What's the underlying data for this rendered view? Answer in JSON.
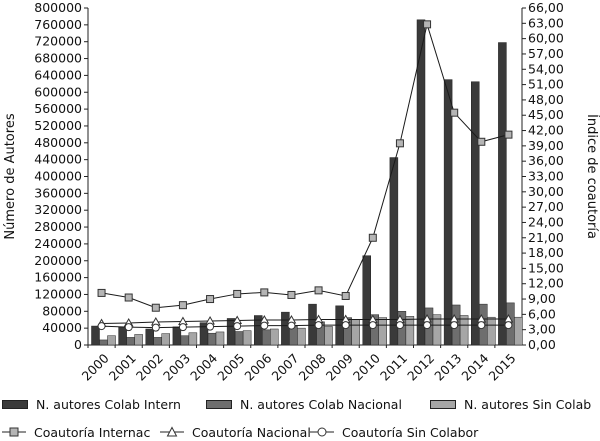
{
  "chart_data": {
    "type": "bar",
    "title": "",
    "xlabel": "",
    "ylabel": "Número de Autores",
    "y2label": "Índice de coautoría",
    "categories": [
      "2000",
      "2001",
      "2002",
      "2003",
      "2004",
      "2005",
      "2006",
      "2007",
      "2008",
      "2009",
      "2010",
      "2011",
      "2012",
      "2013",
      "2014",
      "2015"
    ],
    "ylim": [
      0,
      800000
    ],
    "y_ticks": [
      "0",
      "40000",
      "80000",
      "120000",
      "160000",
      "200000",
      "240000",
      "280000",
      "320000",
      "360000",
      "400000",
      "440000",
      "480000",
      "520000",
      "560000",
      "600000",
      "640000",
      "680000",
      "720000",
      "760000",
      "800000"
    ],
    "y2lim": [
      0,
      66
    ],
    "y2_ticks": [
      "0,00",
      "3,00",
      "6,00",
      "9,00",
      "12,00",
      "15,00",
      "18,00",
      "21,00",
      "24,00",
      "27,00",
      "30,00",
      "33,00",
      "36,00",
      "39,00",
      "42,00",
      "45,00",
      "48,00",
      "51,00",
      "54,00",
      "57,00",
      "60,00",
      "63,00",
      "66,00"
    ],
    "grid": false,
    "legend_position": "bottom",
    "bar_series": [
      {
        "name": "N. autores Colab Intern",
        "color": "#3a3a3a",
        "values": [
          45000,
          43000,
          38000,
          43000,
          53000,
          63000,
          70000,
          78000,
          97000,
          93000,
          212000,
          445000,
          772000,
          630000,
          625000,
          718000
        ]
      },
      {
        "name": "N. autores Colab Nacional",
        "color": "#6e6e6e",
        "values": [
          12000,
          18000,
          18000,
          22000,
          28000,
          32000,
          36000,
          45000,
          55000,
          65000,
          72000,
          80000,
          88000,
          95000,
          97000,
          100000
        ]
      },
      {
        "name": "N. autores Sin Colab",
        "color": "#a6a6a6",
        "values": [
          22000,
          25000,
          27000,
          29000,
          31000,
          34000,
          38000,
          40000,
          44000,
          60000,
          65000,
          68000,
          72000,
          70000,
          66000,
          66000
        ]
      }
    ],
    "line_series": [
      {
        "name": "Coautoría Internac",
        "marker": "square",
        "values": [
          10.2,
          9.3,
          7.3,
          7.8,
          9.0,
          10.0,
          10.3,
          9.8,
          10.7,
          9.6,
          21.0,
          39.5,
          62.8,
          45.5,
          39.8,
          41.2
        ]
      },
      {
        "name": "Coautoría Nacional",
        "marker": "triangle",
        "values": [
          4.2,
          4.3,
          4.5,
          4.6,
          4.7,
          4.8,
          4.9,
          4.9,
          5.0,
          5.0,
          5.0,
          5.0,
          5.1,
          5.1,
          5.1,
          5.1
        ]
      },
      {
        "name": "Coautoría Sin Colabor",
        "marker": "circle",
        "values": [
          3.7,
          3.5,
          3.4,
          3.5,
          3.6,
          3.7,
          3.8,
          3.8,
          3.9,
          3.9,
          3.9,
          3.9,
          3.9,
          3.9,
          3.9,
          3.9
        ]
      }
    ]
  }
}
